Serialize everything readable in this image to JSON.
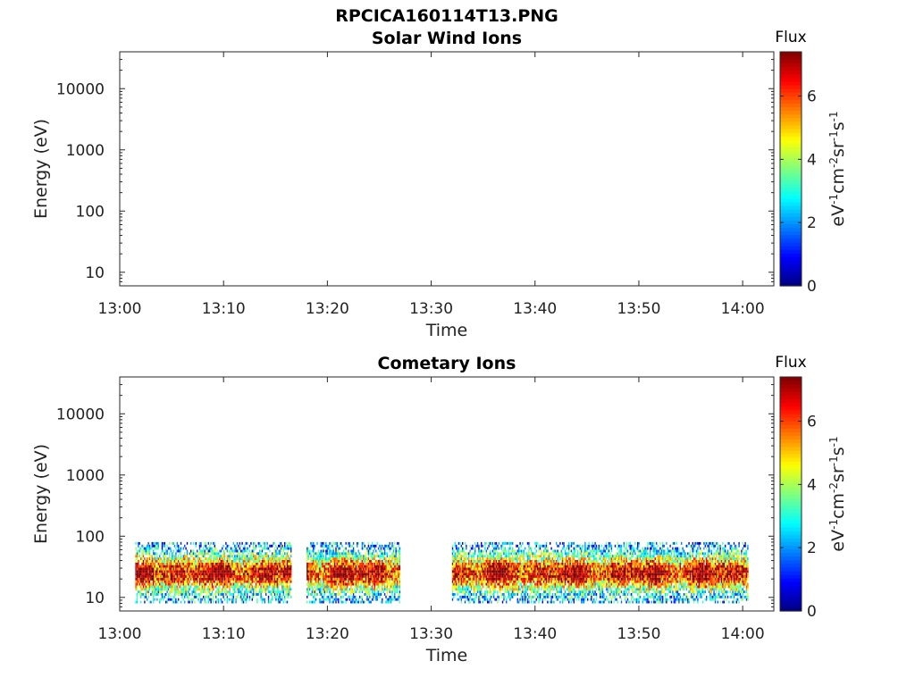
{
  "figure_title": "RPCICA160114T13.PNG",
  "colormap": [
    "#00007f",
    "#0000ff",
    "#007fff",
    "#00ffff",
    "#7fff7f",
    "#ffff00",
    "#ff7f00",
    "#ff0000",
    "#7f0000"
  ],
  "chart_data": [
    {
      "type": "heatmap",
      "title": "Solar Wind Ions",
      "xlabel": "Time",
      "ylabel": "Energy (eV)",
      "x_ticks": [
        "13:00",
        "13:10",
        "13:20",
        "13:30",
        "13:40",
        "13:50",
        "14:00"
      ],
      "xlim_minutes": [
        0,
        63
      ],
      "y_scale": "log",
      "y_ticks": [
        "10",
        "100",
        "1000",
        "10000"
      ],
      "ylim": [
        6,
        40000
      ],
      "colorbar": {
        "title": "Flux",
        "label": "eV-1cm-2sr-1s-1",
        "ticks": [
          "0",
          "2",
          "4",
          "6"
        ],
        "range": [
          0,
          7.4
        ]
      },
      "data": []
    },
    {
      "type": "heatmap",
      "title": "Cometary Ions",
      "xlabel": "Time",
      "ylabel": "Energy (eV)",
      "x_ticks": [
        "13:00",
        "13:10",
        "13:20",
        "13:30",
        "13:40",
        "13:50",
        "14:00"
      ],
      "xlim_minutes": [
        0,
        63
      ],
      "y_scale": "log",
      "y_ticks": [
        "10",
        "100",
        "1000",
        "10000"
      ],
      "ylim": [
        6,
        40000
      ],
      "colorbar": {
        "title": "Flux",
        "label": "eV-1cm-2sr-1s-1",
        "ticks": [
          "0",
          "2",
          "4",
          "6"
        ],
        "range": [
          0,
          7.4
        ]
      },
      "energy_range_eV": [
        8,
        80
      ],
      "active_intervals_minutes": [
        [
          1.5,
          16.5
        ],
        [
          18,
          27
        ],
        [
          32,
          60.5
        ]
      ],
      "peak_flux": 7.0,
      "peak_energy_eV": 25
    }
  ]
}
